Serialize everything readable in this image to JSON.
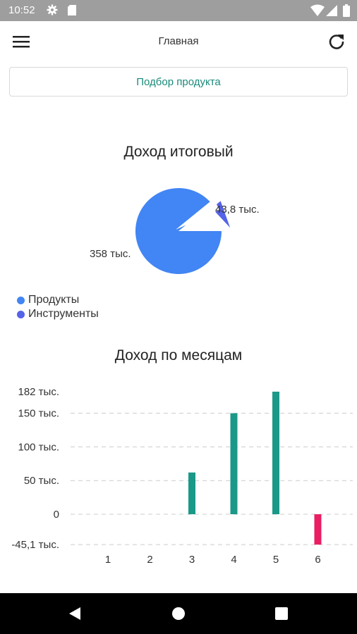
{
  "status_bar": {
    "time": "10:52",
    "icons": [
      "gear-icon",
      "sd-card-icon",
      "wifi-icon",
      "cell-signal-icon",
      "battery-icon"
    ]
  },
  "app_bar": {
    "title": "Главная",
    "menu_icon": "hamburger-menu-icon",
    "refresh_icon": "refresh-icon"
  },
  "product_button": {
    "label": "Подбор продукта"
  },
  "colors": {
    "products": "#4285f4",
    "instruments": "#5563e8",
    "positive_bar": "#1b9988",
    "negative_bar": "#e91e63",
    "accent": "#1b8a7a"
  },
  "chart_data": [
    {
      "type": "pie",
      "title": "Доход итоговый",
      "categories": [
        "Продукты",
        "Инструменты"
      ],
      "values": [
        358000,
        43800
      ],
      "value_labels": [
        "358 тыс.",
        "43,8 тыс."
      ],
      "legend": "bottom-left"
    },
    {
      "type": "bar",
      "title": "Доход по месяцам",
      "categories": [
        "1",
        "2",
        "3",
        "4",
        "5",
        "6"
      ],
      "values": [
        0,
        0,
        62000,
        150000,
        182000,
        -45100
      ],
      "y_tick_labels": [
        "182 тыс.",
        "150 тыс.",
        "100 тыс.",
        "50 тыс.",
        "0",
        "-45,1 тыс."
      ],
      "y_tick_values": [
        182000,
        150000,
        100000,
        50000,
        0,
        -45100
      ],
      "ylim": [
        -45100,
        182000
      ],
      "grid": true
    }
  ],
  "nav_bar": {
    "icons": [
      "back-icon",
      "home-icon",
      "recent-apps-icon"
    ]
  }
}
